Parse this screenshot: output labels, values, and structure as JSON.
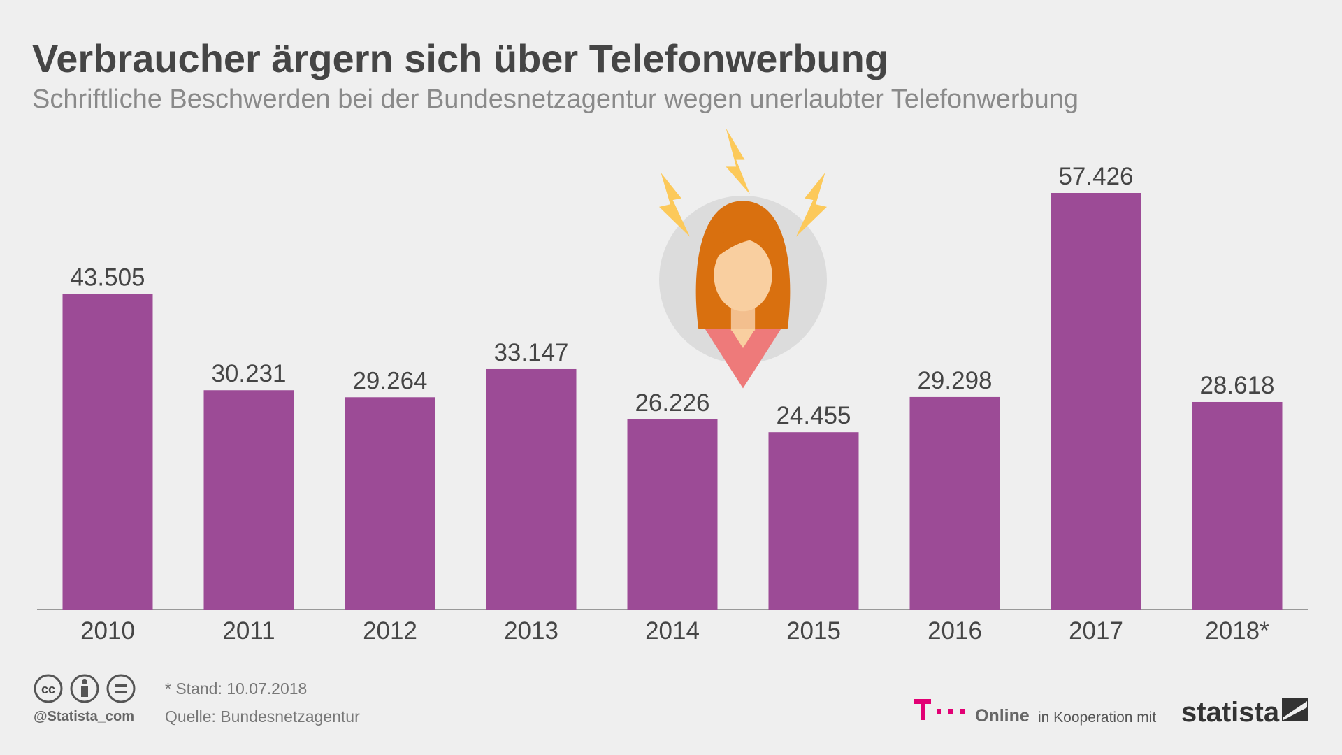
{
  "chart_data": {
    "type": "bar",
    "title": "Verbraucher ärgern sich über Telefonwerbung",
    "subtitle": "Schriftliche Beschwerden bei der Bundesnetzagentur wegen unerlaubter Telefonwerbung",
    "categories": [
      "2010",
      "2011",
      "2012",
      "2013",
      "2014",
      "2015",
      "2016",
      "2017",
      "2018*"
    ],
    "values": [
      43505,
      30231,
      29264,
      33147,
      26226,
      24455,
      29298,
      57426,
      28618
    ],
    "value_labels": [
      "43.505",
      "30.231",
      "29.264",
      "33.147",
      "26.226",
      "24.455",
      "29.298",
      "57.426",
      "28.618"
    ],
    "color": "#9c4b96"
  },
  "footer": {
    "license_icon": "cc",
    "handle": "@Statista_com",
    "note": "* Stand: 10.07.2018",
    "source": "Quelle: Bundesnetzagentur",
    "partner": "Online",
    "cooperation": "in Kooperation mit",
    "brand": "statista"
  }
}
